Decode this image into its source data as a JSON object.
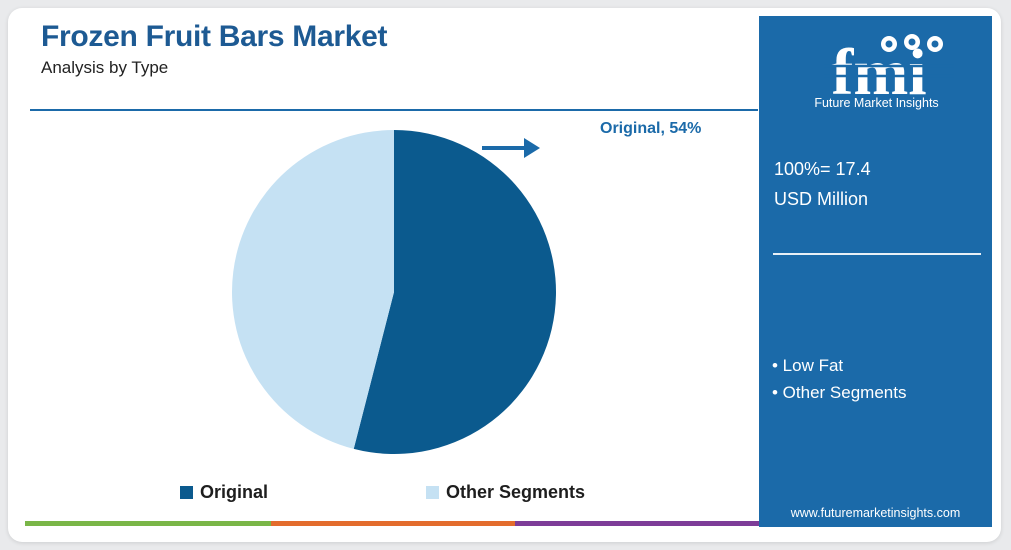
{
  "header": {
    "title": "Frozen Fruit Bars Market",
    "subtitle": "Analysis by Type"
  },
  "chart_data": {
    "type": "pie",
    "slices": [
      {
        "label": "Original",
        "value": 54,
        "color": "#0b5a8e"
      },
      {
        "label": "Other Segments",
        "value": 46,
        "color": "#c5e1f3"
      }
    ],
    "callout": "Original, 54%",
    "legend": [
      "Original",
      "Other Segments"
    ],
    "legend_position": "bottom"
  },
  "colors": {
    "accent": "#1b6aa9",
    "bottom_bar": [
      "#7ab648",
      "#e36c2d",
      "#7d3c98"
    ]
  },
  "panel": {
    "brand": "fmi",
    "brand_name": "Future Market Insights",
    "total_line1": "100%= 17.4",
    "total_line2": "USD Million",
    "segments": [
      "• Low Fat",
      "• Other Segments"
    ],
    "website": "www.futuremarketinsights.com"
  },
  "icons": [
    "arrow-right-icon",
    "fmi-logo-icon"
  ]
}
